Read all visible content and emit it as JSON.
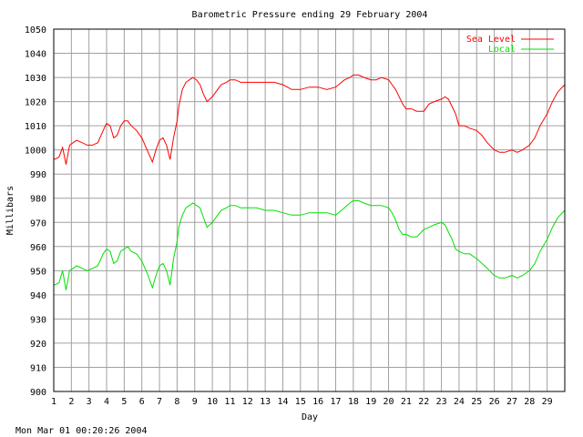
{
  "chart_data": {
    "type": "line",
    "title": "Barometric Pressure ending 29 February 2004",
    "xlabel": "Day",
    "ylabel": "Millibars",
    "ylim": [
      900,
      1050
    ],
    "yticks": [
      "900",
      "910",
      "920",
      "930",
      "940",
      "950",
      "960",
      "970",
      "980",
      "990",
      "1000",
      "1010",
      "1020",
      "1030",
      "1040",
      "1050"
    ],
    "xlim": [
      1,
      30
    ],
    "xticks": [
      "1",
      "2",
      "3",
      "4",
      "5",
      "6",
      "7",
      "8",
      "9",
      "10",
      "11",
      "12",
      "13",
      "14",
      "15",
      "16",
      "17",
      "18",
      "19",
      "20",
      "21",
      "22",
      "23",
      "24",
      "25",
      "26",
      "27",
      "28",
      "29"
    ],
    "grid": true,
    "legend_position": "top-right",
    "series": [
      {
        "name": "Sea Level",
        "color": "#ff0000",
        "x": [
          1.0,
          1.3,
          1.5,
          1.7,
          1.9,
          2.1,
          2.3,
          2.6,
          2.9,
          3.2,
          3.5,
          3.8,
          4.0,
          4.2,
          4.4,
          4.6,
          4.8,
          5.0,
          5.2,
          5.4,
          5.7,
          6.0,
          6.3,
          6.6,
          6.8,
          7.0,
          7.2,
          7.4,
          7.6,
          7.8,
          8.0,
          8.1,
          8.3,
          8.5,
          8.7,
          8.9,
          9.1,
          9.3,
          9.5,
          9.7,
          10.0,
          10.3,
          10.5,
          10.8,
          11.0,
          11.3,
          11.6,
          12.0,
          12.5,
          13.0,
          13.5,
          14.0,
          14.5,
          15.0,
          15.5,
          16.0,
          16.5,
          17.0,
          17.5,
          17.8,
          18.0,
          18.3,
          18.6,
          19.0,
          19.3,
          19.6,
          20.0,
          20.2,
          20.4,
          20.6,
          20.8,
          21.0,
          21.3,
          21.6,
          22.0,
          22.3,
          22.6,
          23.0,
          23.2,
          23.4,
          23.6,
          23.8,
          24.0,
          24.3,
          24.6,
          25.0,
          25.3,
          25.6,
          26.0,
          26.3,
          26.6,
          27.0,
          27.3,
          27.6,
          28.0,
          28.3,
          28.6,
          29.0,
          29.3,
          29.6,
          30.0
        ],
        "y": [
          996,
          997,
          1001,
          994,
          1002,
          1003,
          1004,
          1003,
          1002,
          1002,
          1003,
          1008,
          1011,
          1010,
          1005,
          1006,
          1010,
          1012,
          1012,
          1010,
          1008,
          1005,
          1000,
          995,
          1000,
          1004,
          1005,
          1002,
          996,
          1005,
          1012,
          1018,
          1025,
          1028,
          1029,
          1030,
          1029,
          1027,
          1023,
          1020,
          1022,
          1025,
          1027,
          1028,
          1029,
          1029,
          1028,
          1028,
          1028,
          1028,
          1028,
          1027,
          1025,
          1025,
          1026,
          1026,
          1025,
          1026,
          1029,
          1030,
          1031,
          1031,
          1030,
          1029,
          1029,
          1030,
          1029,
          1027,
          1025,
          1022,
          1019,
          1017,
          1017,
          1016,
          1016,
          1019,
          1020,
          1021,
          1022,
          1021,
          1018,
          1015,
          1010,
          1010,
          1009,
          1008,
          1006,
          1003,
          1000,
          999,
          999,
          1000,
          999,
          1000,
          1002,
          1005,
          1010,
          1015,
          1020,
          1024,
          1027
        ]
      },
      {
        "name": "Local",
        "color": "#00e000",
        "x": [
          1.0,
          1.3,
          1.5,
          1.7,
          1.9,
          2.1,
          2.3,
          2.6,
          2.9,
          3.2,
          3.5,
          3.8,
          4.0,
          4.2,
          4.4,
          4.6,
          4.8,
          5.0,
          5.2,
          5.4,
          5.7,
          6.0,
          6.3,
          6.6,
          6.8,
          7.0,
          7.2,
          7.4,
          7.6,
          7.8,
          8.0,
          8.1,
          8.3,
          8.5,
          8.7,
          8.9,
          9.1,
          9.3,
          9.5,
          9.7,
          10.0,
          10.3,
          10.5,
          10.8,
          11.0,
          11.3,
          11.6,
          12.0,
          12.5,
          13.0,
          13.5,
          14.0,
          14.5,
          15.0,
          15.5,
          16.0,
          16.5,
          17.0,
          17.5,
          17.8,
          18.0,
          18.3,
          18.6,
          19.0,
          19.3,
          19.6,
          20.0,
          20.2,
          20.4,
          20.6,
          20.8,
          21.0,
          21.3,
          21.6,
          22.0,
          22.3,
          22.6,
          23.0,
          23.2,
          23.4,
          23.6,
          23.8,
          24.0,
          24.3,
          24.6,
          25.0,
          25.3,
          25.6,
          26.0,
          26.3,
          26.6,
          27.0,
          27.3,
          27.6,
          28.0,
          28.3,
          28.6,
          29.0,
          29.3,
          29.6,
          30.0
        ],
        "y": [
          944,
          945,
          950,
          942,
          950,
          951,
          952,
          951,
          950,
          951,
          952,
          957,
          959,
          958,
          953,
          954,
          958,
          959,
          960,
          958,
          957,
          954,
          949,
          943,
          948,
          952,
          953,
          950,
          944,
          955,
          962,
          968,
          973,
          976,
          977,
          978,
          977,
          976,
          972,
          968,
          970,
          973,
          975,
          976,
          977,
          977,
          976,
          976,
          976,
          975,
          975,
          974,
          973,
          973,
          974,
          974,
          974,
          973,
          976,
          978,
          979,
          979,
          978,
          977,
          977,
          977,
          976,
          974,
          971,
          967,
          965,
          965,
          964,
          964,
          967,
          968,
          969,
          970,
          969,
          966,
          963,
          959,
          958,
          957,
          957,
          955,
          953,
          951,
          948,
          947,
          947,
          948,
          947,
          948,
          950,
          953,
          958,
          963,
          968,
          972,
          975
        ]
      }
    ]
  },
  "footer": {
    "timestamp": "Mon Mar 01 00:20:26 2004"
  }
}
